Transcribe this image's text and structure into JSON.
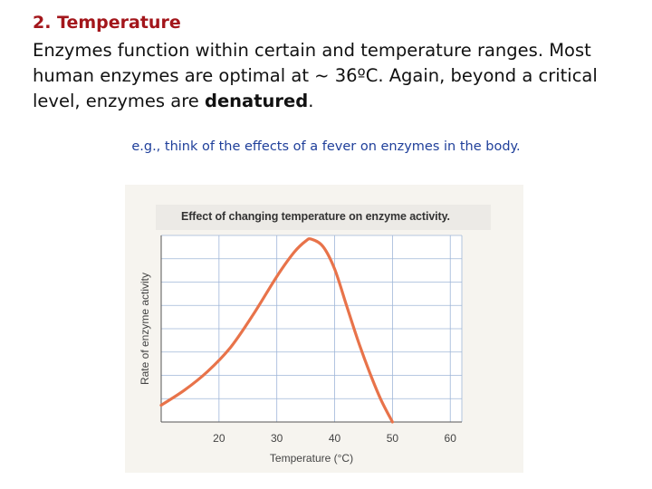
{
  "heading": "2. Temperature",
  "paragraph": {
    "text_before": "Enzymes function within certain and temperature ranges. Most human enzymes are optimal at ~ 36ºC. Again, beyond a critical level, enzymes are ",
    "bold": "denatured",
    "text_after": "."
  },
  "example": "e.g., think of the effects of a fever on enzymes in the body.",
  "chart_data": {
    "type": "line",
    "title": "Effect of changing temperature on enzyme activity.",
    "xlabel": "Temperature (°C)",
    "ylabel": "Rate of enzyme activity",
    "xlim": [
      10,
      62
    ],
    "ylim": [
      0,
      1
    ],
    "x_ticks": [
      20,
      30,
      40,
      50,
      60
    ],
    "grid": true,
    "color": "#e8734a",
    "series": [
      {
        "x": [
          10,
          14,
          18,
          22,
          26,
          30,
          33,
          35,
          36,
          38,
          40,
          42,
          44,
          46,
          48,
          50
        ],
        "y": [
          0.09,
          0.17,
          0.27,
          0.4,
          0.58,
          0.78,
          0.91,
          0.97,
          0.98,
          0.94,
          0.82,
          0.63,
          0.44,
          0.27,
          0.12,
          0.0
        ]
      }
    ]
  }
}
